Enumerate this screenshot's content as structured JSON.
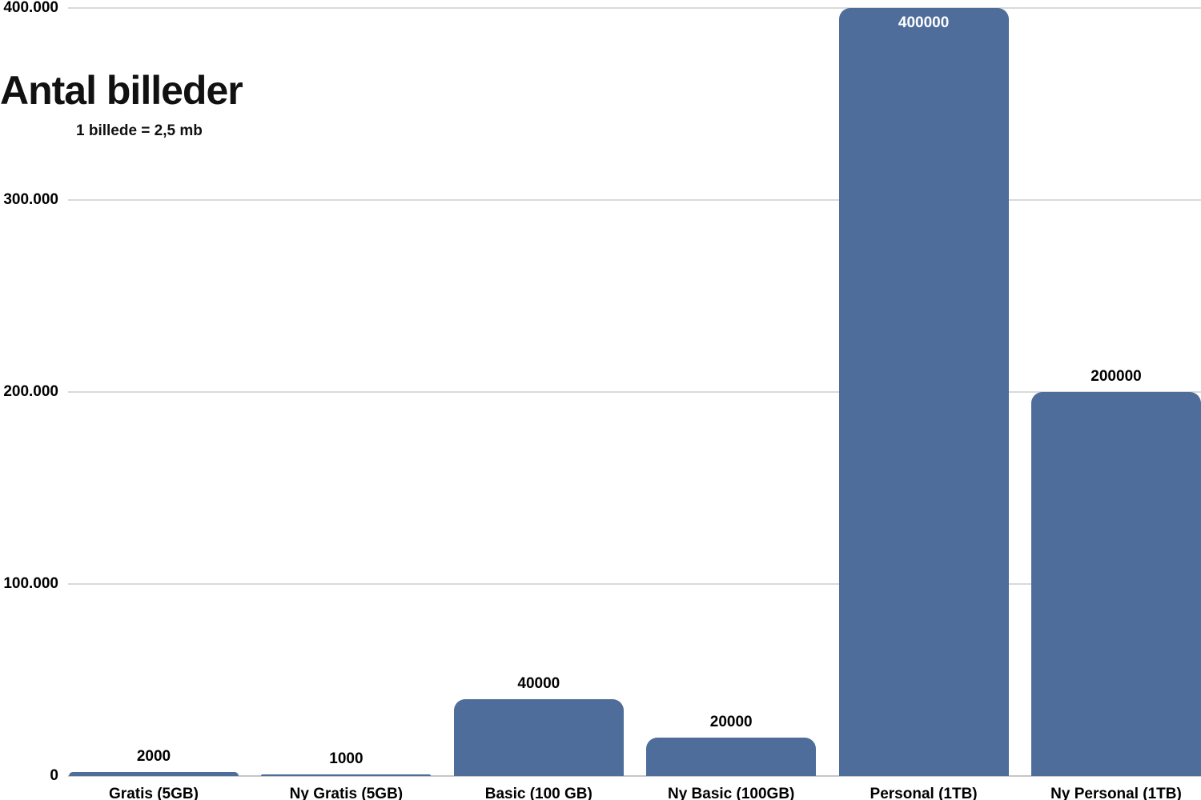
{
  "header": {
    "title": "Antal billeder",
    "subtitle": "1 billede = 2,5 mb"
  },
  "chart_data": {
    "type": "bar",
    "title": "Antal billeder",
    "subtitle": "1 billede = 2,5 mb",
    "categories": [
      "Gratis (5GB)",
      "Ny Gratis (5GB)",
      "Basic (100 GB)",
      "Ny Basic (100GB)",
      "Personal (1TB)",
      "Ny Personal (1TB)"
    ],
    "values": [
      2000,
      1000,
      40000,
      20000,
      400000,
      200000
    ],
    "data_labels": [
      "2000",
      "1000",
      "40000",
      "20000",
      "400000",
      "200000"
    ],
    "xlabel": "",
    "ylabel": "",
    "ylim": [
      0,
      400000
    ],
    "yticks": [
      {
        "value": 0,
        "label": "0"
      },
      {
        "value": 100000,
        "label": "100.000"
      },
      {
        "value": 200000,
        "label": "200.000"
      },
      {
        "value": 300000,
        "label": "300.000"
      },
      {
        "value": 400000,
        "label": "400.000"
      }
    ],
    "grid": true,
    "legend": false,
    "colors": {
      "bar": "#4e6d9b",
      "data_label": "#000000",
      "data_label_inside": "#ffffff",
      "gridline": "#d9d9d9",
      "axis_line": "#c6c6c6",
      "tick_text": "#000000",
      "category_text": "#000000",
      "background": "#ffffff"
    }
  }
}
